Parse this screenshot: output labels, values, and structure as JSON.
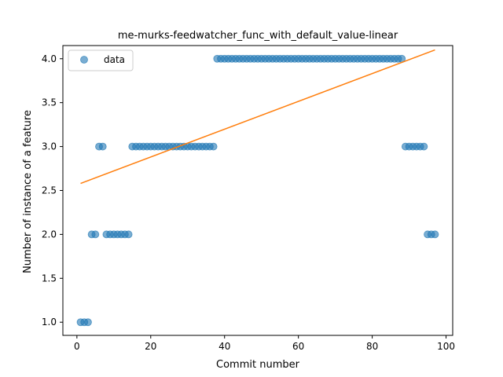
{
  "chart_data": {
    "type": "scatter",
    "title": "me-murks-feedwatcher_func_with_default_value-linear",
    "xlabel": "Commit number",
    "ylabel": "Number of instance of a feature",
    "xlim": [
      -3.8,
      101.8
    ],
    "ylim": [
      0.85,
      4.15
    ],
    "xticks": [
      0,
      20,
      40,
      60,
      80,
      100
    ],
    "yticks": [
      1.0,
      1.5,
      2.0,
      2.5,
      3.0,
      3.5,
      4.0
    ],
    "xtick_labels": [
      "0",
      "20",
      "40",
      "60",
      "80",
      "100"
    ],
    "ytick_labels": [
      "1.0",
      "1.5",
      "2.0",
      "2.5",
      "3.0",
      "3.5",
      "4.0"
    ],
    "grid": false,
    "legend_position": "top-left",
    "series": [
      {
        "name": "data",
        "kind": "scatter",
        "color": "#1f77b4",
        "x": [
          1,
          2,
          3,
          4,
          5,
          6,
          7,
          8,
          9,
          10,
          11,
          12,
          13,
          14,
          15,
          16,
          17,
          18,
          19,
          20,
          21,
          22,
          23,
          24,
          25,
          26,
          27,
          28,
          29,
          30,
          31,
          32,
          33,
          34,
          35,
          36,
          37,
          38,
          39,
          40,
          41,
          42,
          43,
          44,
          45,
          46,
          47,
          48,
          49,
          50,
          51,
          52,
          53,
          54,
          55,
          56,
          57,
          58,
          59,
          60,
          61,
          62,
          63,
          64,
          65,
          66,
          67,
          68,
          69,
          70,
          71,
          72,
          73,
          74,
          75,
          76,
          77,
          78,
          79,
          80,
          81,
          82,
          83,
          84,
          85,
          86,
          87,
          88,
          89,
          90,
          91,
          92,
          93,
          94,
          95,
          96,
          97
        ],
        "y": [
          1,
          1,
          1,
          2,
          2,
          3,
          3,
          2,
          2,
          2,
          2,
          2,
          2,
          2,
          3,
          3,
          3,
          3,
          3,
          3,
          3,
          3,
          3,
          3,
          3,
          3,
          3,
          3,
          3,
          3,
          3,
          3,
          3,
          3,
          3,
          3,
          3,
          4,
          4,
          4,
          4,
          4,
          4,
          4,
          4,
          4,
          4,
          4,
          4,
          4,
          4,
          4,
          4,
          4,
          4,
          4,
          4,
          4,
          4,
          4,
          4,
          4,
          4,
          4,
          4,
          4,
          4,
          4,
          4,
          4,
          4,
          4,
          4,
          4,
          4,
          4,
          4,
          4,
          4,
          4,
          4,
          4,
          4,
          4,
          4,
          4,
          4,
          4,
          3,
          3,
          3,
          3,
          3,
          3,
          2,
          2,
          2
        ]
      },
      {
        "name": "",
        "kind": "line",
        "color": "#ff7f0e",
        "x": [
          1,
          97
        ],
        "y": [
          2.58,
          4.1
        ]
      }
    ]
  }
}
